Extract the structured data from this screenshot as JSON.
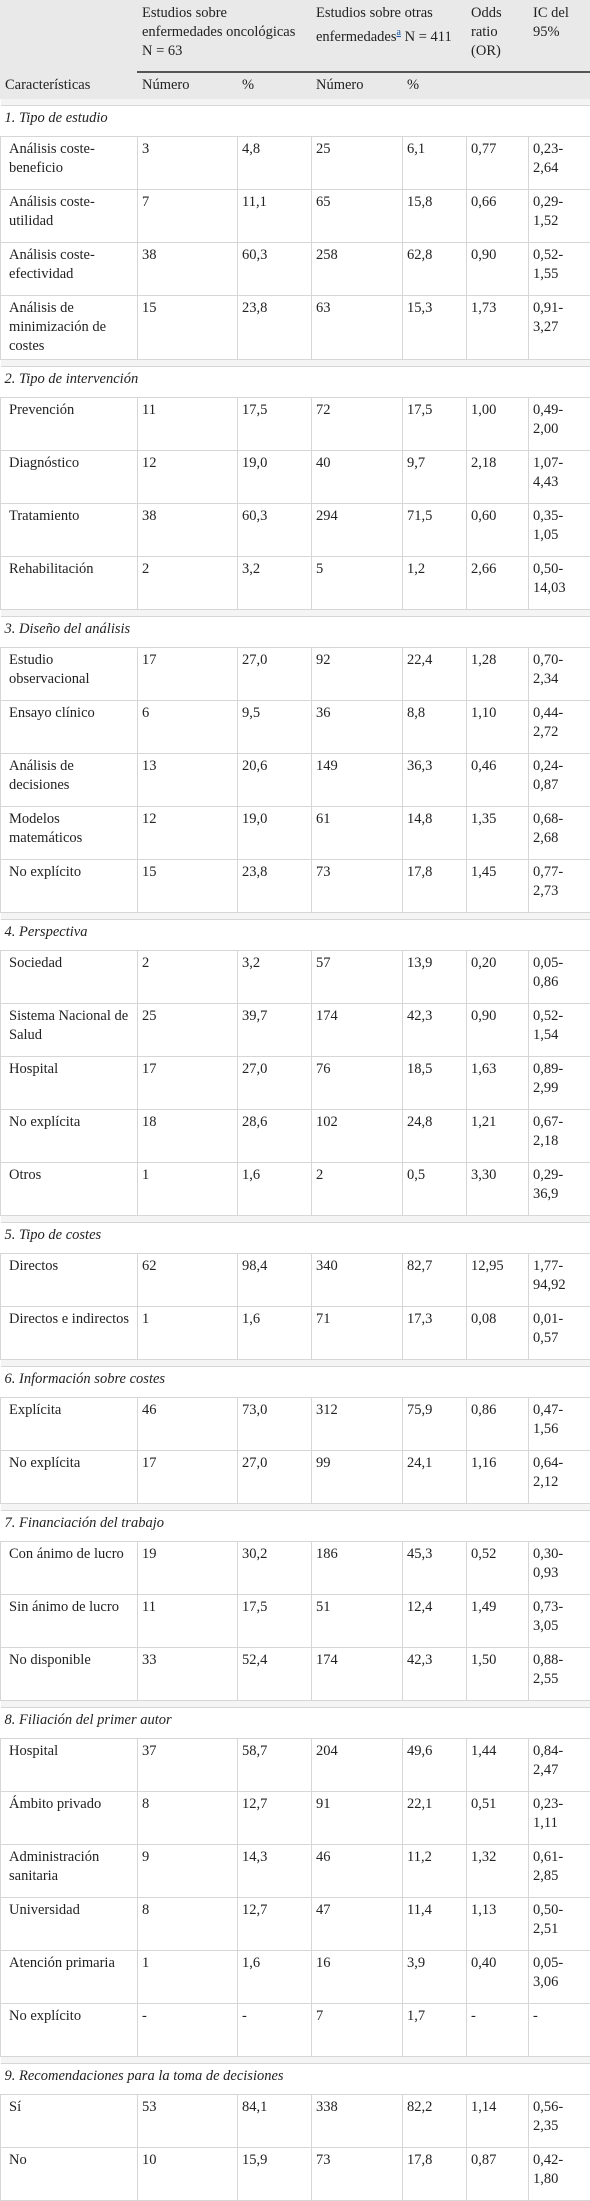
{
  "header": {
    "group1": "Estudios sobre enfermedades oncológicas",
    "group1_n": "N = 63",
    "group2": "Estudios sobre otras enfermedades",
    "group2_note": "a",
    "group2_n": "N = 411",
    "or": "Odds ratio (OR)",
    "ci": "IC del 95%",
    "characteristics": "Características",
    "number1": "Número",
    "pct1": "%",
    "number2": "Número",
    "pct2": "%"
  },
  "sections": [
    {
      "title": "1. Tipo de estudio",
      "rows": [
        [
          "Análisis coste-beneficio",
          "3",
          "4,8",
          "25",
          "6,1",
          "0,77",
          "0,23-2,64"
        ],
        [
          "Análisis coste-utilidad",
          "7",
          "11,1",
          "65",
          "15,8",
          "0,66",
          "0,29-1,52"
        ],
        [
          "Análisis coste-efectividad",
          "38",
          "60,3",
          "258",
          "62,8",
          "0,90",
          "0,52-1,55"
        ],
        [
          "Análisis de minimización de costes",
          "15",
          "23,8",
          "63",
          "15,3",
          "1,73",
          "0,91-3,27"
        ]
      ]
    },
    {
      "title": "2. Tipo de intervención",
      "rows": [
        [
          "Prevención",
          "11",
          "17,5",
          "72",
          "17,5",
          "1,00",
          "0,49-2,00"
        ],
        [
          "Diagnóstico",
          "12",
          "19,0",
          "40",
          "9,7",
          "2,18",
          "1,07-4,43"
        ],
        [
          "Tratamiento",
          "38",
          "60,3",
          "294",
          "71,5",
          "0,60",
          "0,35-1,05"
        ],
        [
          "Rehabilitación",
          "2",
          "3,2",
          "5",
          "1,2",
          "2,66",
          "0,50-14,03"
        ]
      ]
    },
    {
      "title": "3. Diseño del análisis",
      "rows": [
        [
          "Estudio observacional",
          "17",
          "27,0",
          "92",
          "22,4",
          "1,28",
          "0,70-2,34"
        ],
        [
          "Ensayo clínico",
          "6",
          "9,5",
          "36",
          "8,8",
          "1,10",
          "0,44-2,72"
        ],
        [
          "Análisis de decisiones",
          "13",
          "20,6",
          "149",
          "36,3",
          "0,46",
          "0,24-0,87"
        ],
        [
          "Modelos matemáticos",
          "12",
          "19,0",
          "61",
          "14,8",
          "1,35",
          "0,68-2,68"
        ],
        [
          "No explícito",
          "15",
          "23,8",
          "73",
          "17,8",
          "1,45",
          "0,77-2,73"
        ]
      ]
    },
    {
      "title": "4. Perspectiva",
      "rows": [
        [
          "Sociedad",
          "2",
          "3,2",
          "57",
          "13,9",
          "0,20",
          "0,05-0,86"
        ],
        [
          "Sistema Nacional de Salud",
          "25",
          "39,7",
          "174",
          "42,3",
          "0,90",
          "0,52-1,54"
        ],
        [
          "Hospital",
          "17",
          "27,0",
          "76",
          "18,5",
          "1,63",
          "0,89-2,99"
        ],
        [
          "No explícita",
          "18",
          "28,6",
          "102",
          "24,8",
          "1,21",
          "0,67-2,18"
        ],
        [
          "Otros",
          "1",
          "1,6",
          "2",
          "0,5",
          "3,30",
          "0,29-36,9"
        ]
      ]
    },
    {
      "title": "5. Tipo de costes",
      "rows": [
        [
          "Directos",
          "62",
          "98,4",
          "340",
          "82,7",
          "12,95",
          "1,77-94,92"
        ],
        [
          "Directos e indirectos",
          "1",
          "1,6",
          "71",
          "17,3",
          "0,08",
          "0,01-0,57"
        ]
      ]
    },
    {
      "title": "6. Información sobre costes",
      "rows": [
        [
          "Explícita",
          "46",
          "73,0",
          "312",
          "75,9",
          "0,86",
          "0,47-1,56"
        ],
        [
          "No explícita",
          "17",
          "27,0",
          "99",
          "24,1",
          "1,16",
          "0,64-2,12"
        ]
      ]
    },
    {
      "title": "7. Financiación del trabajo",
      "rows": [
        [
          "Con ánimo de lucro",
          "19",
          "30,2",
          "186",
          "45,3",
          "0,52",
          "0,30-0,93"
        ],
        [
          "Sin ánimo de lucro",
          "11",
          "17,5",
          "51",
          "12,4",
          "1,49",
          "0,73-3,05"
        ],
        [
          "No disponible",
          "33",
          "52,4",
          "174",
          "42,3",
          "1,50",
          "0,88-2,55"
        ]
      ]
    },
    {
      "title": "8. Filiación del primer autor",
      "rows": [
        [
          "Hospital",
          "37",
          "58,7",
          "204",
          "49,6",
          "1,44",
          "0,84-2,47"
        ],
        [
          "Ámbito privado",
          "8",
          "12,7",
          "91",
          "22,1",
          "0,51",
          "0,23-1,11"
        ],
        [
          "Administración sanitaria",
          "9",
          "14,3",
          "46",
          "11,2",
          "1,32",
          "0,61-2,85"
        ],
        [
          "Universidad",
          "8",
          "12,7",
          "47",
          "11,4",
          "1,13",
          "0,50-2,51"
        ],
        [
          "Atención primaria",
          "1",
          "1,6",
          "16",
          "3,9",
          "0,40",
          "0,05-3,06"
        ],
        [
          "No explícito",
          "-",
          "-",
          "7",
          "1,7",
          "-",
          "-"
        ]
      ]
    },
    {
      "title": "9. Recomendaciones para la toma de decisiones",
      "rows": [
        [
          "Sí",
          "53",
          "84,1",
          "338",
          "82,2",
          "1,14",
          "0,56-2,35"
        ],
        [
          "No",
          "10",
          "15,9",
          "73",
          "17,8",
          "0,87",
          "0,42-1,80"
        ]
      ]
    }
  ]
}
